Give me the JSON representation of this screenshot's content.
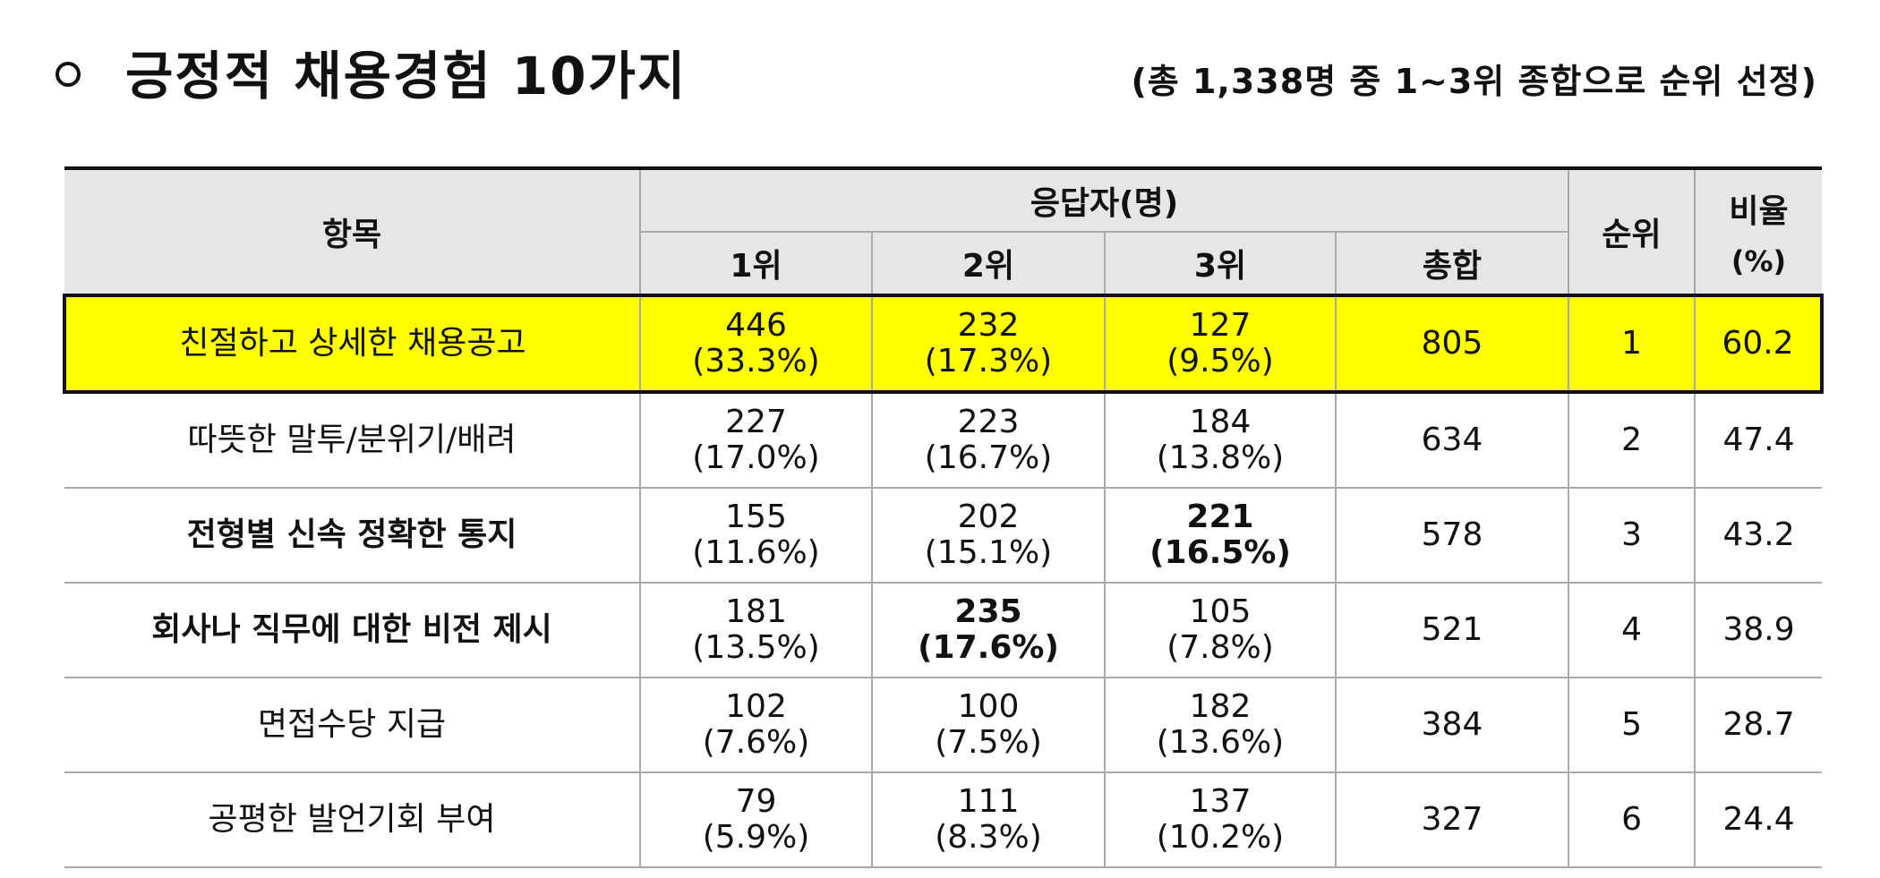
{
  "header": {
    "title": "긍정적 채용경험 10가지",
    "note": "(총 1,338명 중 1~3위 종합으로 순위 선정)"
  },
  "table": {
    "columns": {
      "item": "항목",
      "respondents": "응답자(명)",
      "rank1": "1위",
      "rank2": "2위",
      "rank3": "3위",
      "total": "총합",
      "rank": "순위",
      "ratio": [
        "비율",
        "(%)"
      ]
    },
    "rows": [
      [
        "친절하고 상세한 채용공고",
        [
          446,
          "(33.3%)"
        ],
        [
          232,
          "(17.3%)"
        ],
        [
          127,
          "(9.5%)"
        ],
        805,
        1,
        60.2
      ],
      [
        "따뜻한 말투/분위기/배려",
        [
          227,
          "(17.0%)"
        ],
        [
          223,
          "(16.7%)"
        ],
        [
          184,
          "(13.8%)"
        ],
        634,
        2,
        47.4
      ],
      [
        "전형별 신속 정확한 통지",
        [
          155,
          "(11.6%)"
        ],
        [
          202,
          "(15.1%)"
        ],
        [
          221,
          "(16.5%)"
        ],
        578,
        3,
        43.2
      ],
      [
        "회사나 직무에 대한 비전 제시",
        [
          181,
          "(13.5%)"
        ],
        [
          235,
          "(17.6%)"
        ],
        [
          105,
          "(7.8%)"
        ],
        521,
        4,
        38.9
      ],
      [
        "면접수당 지급",
        [
          102,
          "(7.6%)"
        ],
        [
          100,
          "(7.5%)"
        ],
        [
          182,
          "(13.6%)"
        ],
        384,
        5,
        28.7
      ],
      [
        "공평한 발언기회 부여",
        [
          79,
          "(5.9%)"
        ],
        [
          111,
          "(8.3%)"
        ],
        [
          137,
          "(10.2%)"
        ],
        327,
        6,
        24.4
      ]
    ]
  }
}
